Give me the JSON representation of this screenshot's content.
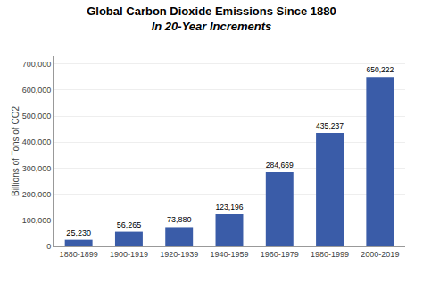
{
  "chart_data": {
    "type": "bar",
    "title": "Global Carbon Dioxide Emissions Since 1880",
    "subtitle": "In 20-Year Increments",
    "ylabel": "Billions of Tons of CO2",
    "categories": [
      "1880-1899",
      "1900-1919",
      "1920-1939",
      "1940-1959",
      "1960-1979",
      "1980-1999",
      "2000-2019"
    ],
    "values": [
      25230,
      56265,
      73880,
      123196,
      284669,
      435237,
      650222
    ],
    "value_labels": [
      "25,230",
      "56,265",
      "73,880",
      "123,196",
      "284,669",
      "435,237",
      "650,222"
    ],
    "color": "#3a5ca8",
    "ylim": [
      0,
      730000
    ],
    "yticks": [
      0,
      {
        "value": 100000,
        "label": "100,000"
      },
      {
        "value": 200000,
        "label": "200,000"
      },
      {
        "value": 300000,
        "label": "300,000"
      },
      {
        "value": 400000,
        "label": "400,000"
      },
      {
        "value": 500000,
        "label": "500,000"
      },
      {
        "value": 600000,
        "label": "600,000"
      },
      {
        "value": 700000,
        "label": "700,000"
      }
    ],
    "grid": true,
    "data_labels": true
  }
}
